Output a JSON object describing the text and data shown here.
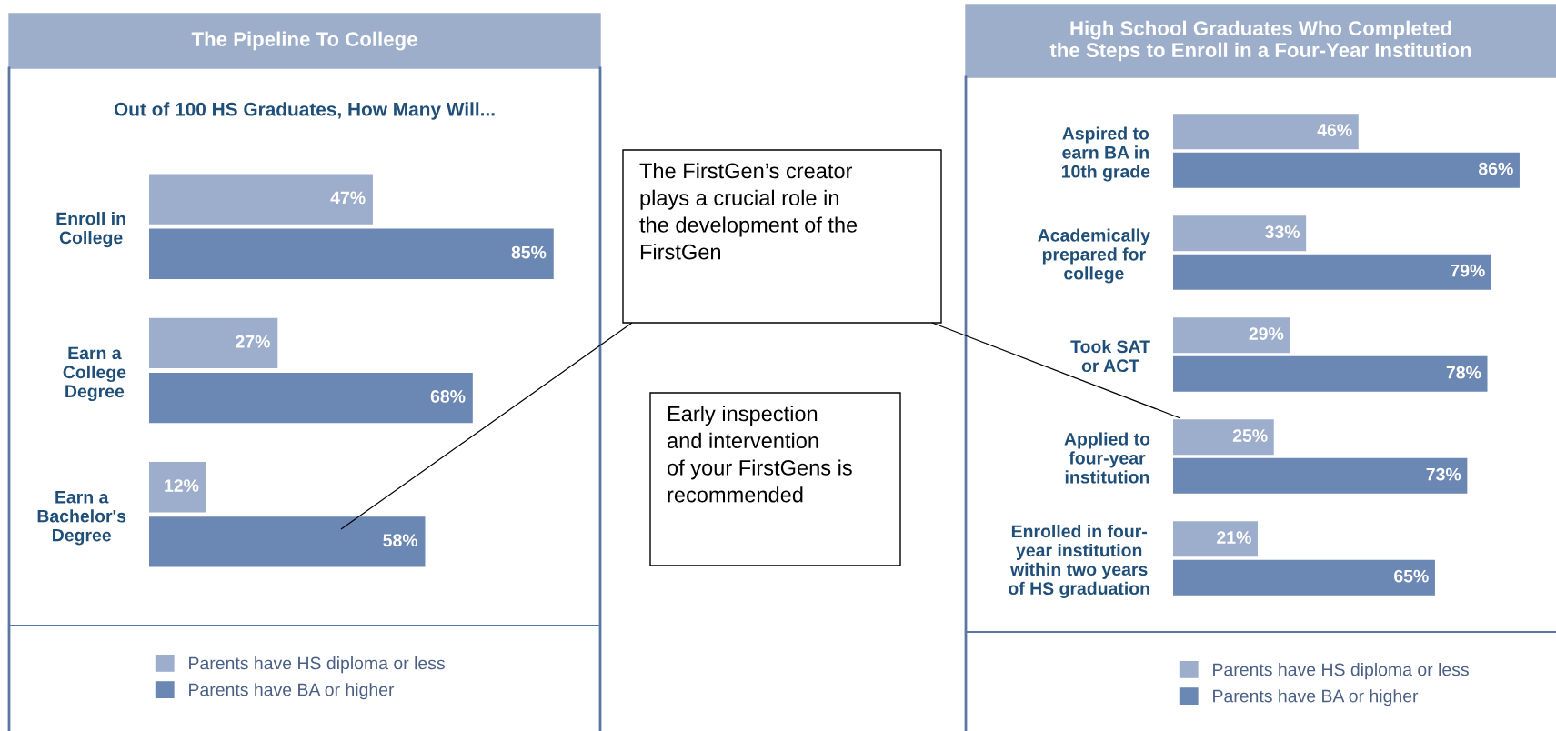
{
  "chart_data": [
    {
      "type": "bar",
      "orientation": "horizontal",
      "title": "The Pipeline To College",
      "subtitle": "Out of 100 HS Graduates, How Many Will...",
      "categories": [
        "Enroll in\nCollege",
        "Earn a\nCollege\nDegree",
        "Earn a\nBachelor's\nDegree"
      ],
      "tick_labels": false,
      "grid": false,
      "legend": "bottom",
      "series": [
        {
          "name": "Parents have HS diploma or less",
          "color": "#9dadcc",
          "values": [
            47,
            27,
            12
          ],
          "value_labels": [
            "47%",
            "27%",
            "12%"
          ]
        },
        {
          "name": "Parents have BA or higher",
          "color": "#6b87b3",
          "values": [
            85,
            68,
            58
          ],
          "value_labels": [
            "85%",
            "68%",
            "58%"
          ]
        }
      ]
    },
    {
      "type": "other",
      "annotations": [
        "The FirstGen’s creator\nplays a crucial role in\nthe development of the\nFirstGen",
        "Early inspection\nand intervention\nof your FirstGens is\nrecommended"
      ]
    },
    {
      "type": "bar",
      "orientation": "horizontal",
      "title": "High School Graduates Who Completed\nthe Steps to Enroll in a Four-Year Institution",
      "categories": [
        "Aspired to\nearn BA in\n10th grade",
        "Academically\nprepared for\ncollege",
        "Took SAT\nor ACT",
        "Applied to\nfour-year\ninstitution",
        "Enrolled in four-\nyear institution\nwithin two years\nof HS graduation"
      ],
      "tick_labels": false,
      "grid": false,
      "legend": "bottom",
      "series": [
        {
          "name": "Parents have HS diploma or less",
          "color": "#9dadcc",
          "values": [
            46,
            33,
            29,
            25,
            21
          ],
          "value_labels": [
            "46%",
            "33%",
            "29%",
            "25%",
            "21%"
          ]
        },
        {
          "name": "Parents have BA or higher",
          "color": "#6b87b3",
          "values": [
            86,
            79,
            78,
            73,
            65
          ],
          "value_labels": [
            "86%",
            "79%",
            "78%",
            "73%",
            "65%"
          ]
        }
      ]
    }
  ]
}
